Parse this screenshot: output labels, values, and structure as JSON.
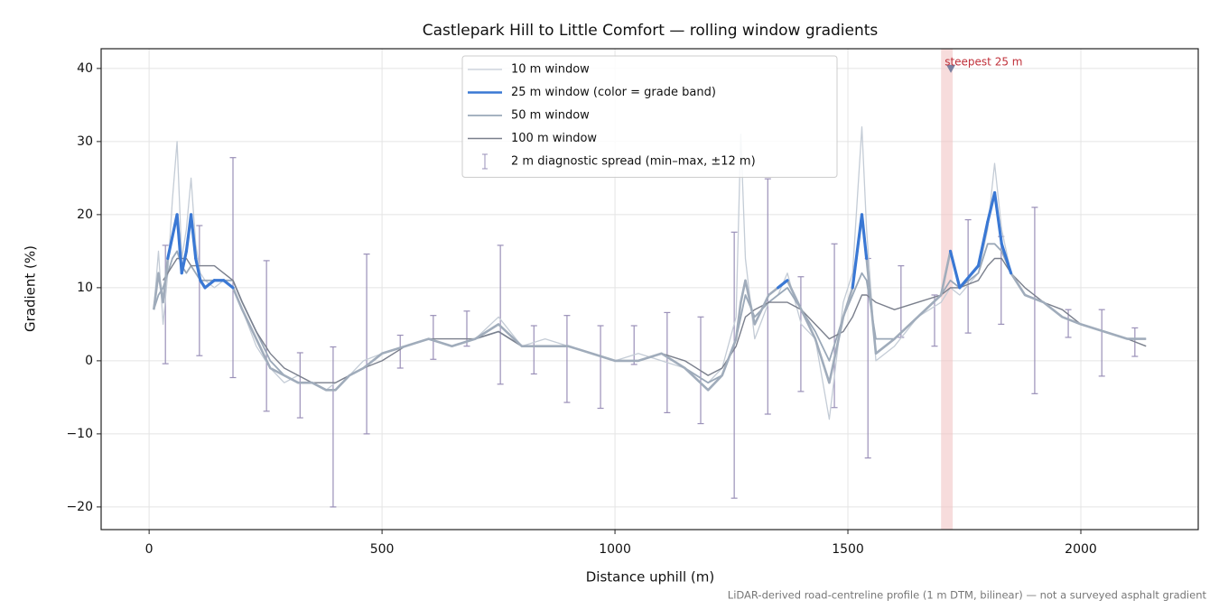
{
  "chart_data": {
    "type": "line",
    "title": "Castlepark Hill to Little Comfort — rolling window gradients",
    "x_label": "Distance uphill (m)",
    "y_label": "Gradient (%)",
    "footnote": "LiDAR-derived road-centreline profile (1 m DTM, bilinear) — not a surveyed asphalt gradient",
    "xlim": [
      -103,
      2252
    ],
    "ylim": [
      -23.1,
      42.7
    ],
    "xticks": [
      0,
      500,
      1000,
      1500,
      2000
    ],
    "yticks": [
      {
        "value": -20,
        "label": "−20"
      },
      {
        "value": -10,
        "label": "−10"
      },
      0,
      10,
      20,
      30,
      40
    ],
    "grid": true,
    "legend": "upper center",
    "x": [
      10,
      20,
      30,
      40,
      50,
      60,
      70,
      80,
      90,
      100,
      110,
      120,
      140,
      160,
      180,
      200,
      230,
      260,
      290,
      320,
      350,
      380,
      400,
      430,
      460,
      500,
      550,
      600,
      650,
      700,
      750,
      800,
      850,
      900,
      950,
      1000,
      1050,
      1100,
      1150,
      1200,
      1230,
      1260,
      1270,
      1280,
      1300,
      1330,
      1350,
      1370,
      1400,
      1430,
      1460,
      1490,
      1510,
      1530,
      1540,
      1560,
      1600,
      1650,
      1700,
      1720,
      1740,
      1780,
      1800,
      1815,
      1830,
      1850,
      1880,
      1920,
      1960,
      2000,
      2050,
      2100,
      2140
    ],
    "series": [
      {
        "name": "10 m window",
        "color": "#c4ccd6",
        "width": 1.3,
        "values": [
          7,
          15,
          5,
          12,
          22,
          30,
          14,
          18,
          25,
          16,
          12,
          11,
          10,
          11,
          10,
          7,
          2,
          -1,
          -3,
          -2,
          -3,
          -4,
          -3,
          -2,
          0,
          1,
          2,
          3,
          2,
          3,
          6,
          2,
          3,
          2,
          1,
          0,
          1,
          0,
          -1,
          -3,
          -1,
          6,
          31,
          14,
          3,
          8,
          9,
          12,
          5,
          3,
          -8,
          8,
          12,
          32,
          18,
          0,
          2,
          6,
          8,
          10,
          9,
          12,
          18,
          27,
          18,
          12,
          9,
          8,
          6,
          5,
          4,
          3,
          2
        ]
      },
      {
        "name": "25 m window (color = grade band)",
        "color": "#3a78d4",
        "width": 2.6,
        "grade_bands": {
          "thresholds": [
            10,
            20
          ],
          "colors": [
            "#a0acbb",
            "#3a78d4",
            "#e08a00"
          ]
        },
        "values": [
          7,
          12,
          8,
          14,
          17,
          20,
          12,
          15,
          20,
          14,
          11,
          10,
          11,
          11,
          10,
          7,
          3,
          -1,
          -2,
          -3,
          -3,
          -4,
          -4,
          -2,
          -1,
          1,
          2,
          3,
          2,
          3,
          5,
          2,
          2,
          2,
          1,
          0,
          0,
          1,
          -1,
          -4,
          -2,
          3,
          8,
          11,
          5,
          9,
          10,
          11,
          7,
          3,
          -3,
          6,
          10,
          20,
          14,
          1,
          3,
          6,
          9,
          15,
          10,
          13,
          19,
          23,
          16,
          12,
          9,
          8,
          6,
          5,
          4,
          3,
          3
        ]
      },
      {
        "name": "50 m window",
        "color": "#9aa8b8",
        "width": 1.8,
        "values": [
          7,
          9,
          10,
          12,
          14,
          15,
          13,
          12,
          13,
          12,
          11,
          11,
          11,
          11,
          11,
          8,
          4,
          0,
          -2,
          -3,
          -3,
          -4,
          -4,
          -2,
          -1,
          1,
          2,
          3,
          2,
          3,
          4,
          2,
          2,
          2,
          1,
          0,
          0,
          1,
          -1,
          -3,
          -2,
          3,
          6,
          9,
          6,
          8,
          9,
          10,
          7,
          4,
          0,
          6,
          9,
          12,
          11,
          3,
          3,
          6,
          9,
          11,
          10,
          12,
          16,
          16,
          15,
          12,
          9,
          8,
          6,
          5,
          4,
          3,
          3
        ]
      },
      {
        "name": "100 m window",
        "color": "#7a7f8c",
        "width": 1.4,
        "values": [
          null,
          null,
          11,
          12,
          13,
          14,
          14,
          14,
          13,
          13,
          13,
          13,
          13,
          12,
          11,
          8,
          4,
          1,
          -1,
          -2,
          -3,
          -3,
          -3,
          -2,
          -1,
          0,
          2,
          3,
          3,
          3,
          4,
          2,
          2,
          2,
          1,
          0,
          0,
          1,
          0,
          -2,
          -1,
          2,
          4,
          6,
          7,
          8,
          8,
          8,
          7,
          5,
          3,
          4,
          6,
          9,
          9,
          8,
          7,
          8,
          9,
          10,
          10,
          11,
          13,
          14,
          14,
          12,
          10,
          8,
          7,
          5,
          4,
          3,
          2
        ]
      }
    ],
    "errorbars": {
      "name": "2 m diagnostic spread (min–max, ±12 m)",
      "color": "#9a90b8",
      "x": [
        35,
        108,
        180,
        252,
        324,
        395,
        467,
        539,
        610,
        682,
        754,
        826,
        897,
        969,
        1041,
        1112,
        1184,
        1256,
        1328,
        1399,
        1471,
        1543,
        1614,
        1686,
        1758,
        1829,
        1901,
        1973,
        2045,
        2116
      ],
      "low": [
        -0.4,
        0.7,
        -2.3,
        -6.9,
        -7.8,
        -20,
        -10,
        -1,
        0.2,
        2,
        -3.2,
        -1.8,
        -5.7,
        -6.5,
        -0.5,
        -7.1,
        -8.6,
        -18.8,
        -7.3,
        -4.2,
        -6.4,
        -13.3,
        3.2,
        2,
        3.8,
        5,
        -4.5,
        3.2,
        -2.1,
        0.6
      ],
      "high": [
        15.8,
        18.5,
        27.8,
        13.7,
        1.1,
        1.9,
        14.6,
        3.5,
        6.2,
        6.8,
        15.8,
        4.8,
        6.2,
        4.8,
        4.8,
        6.6,
        6,
        17.6,
        24.9,
        11.5,
        16,
        14,
        13,
        9,
        19.3,
        17,
        21,
        7,
        7,
        4.5
      ]
    },
    "annotation": {
      "text": "steepest 25 m",
      "x0": 1700,
      "x1": 1725,
      "x": 1721,
      "y": 40,
      "color": "#c0303a",
      "band_color": "#f2c4c4"
    }
  }
}
